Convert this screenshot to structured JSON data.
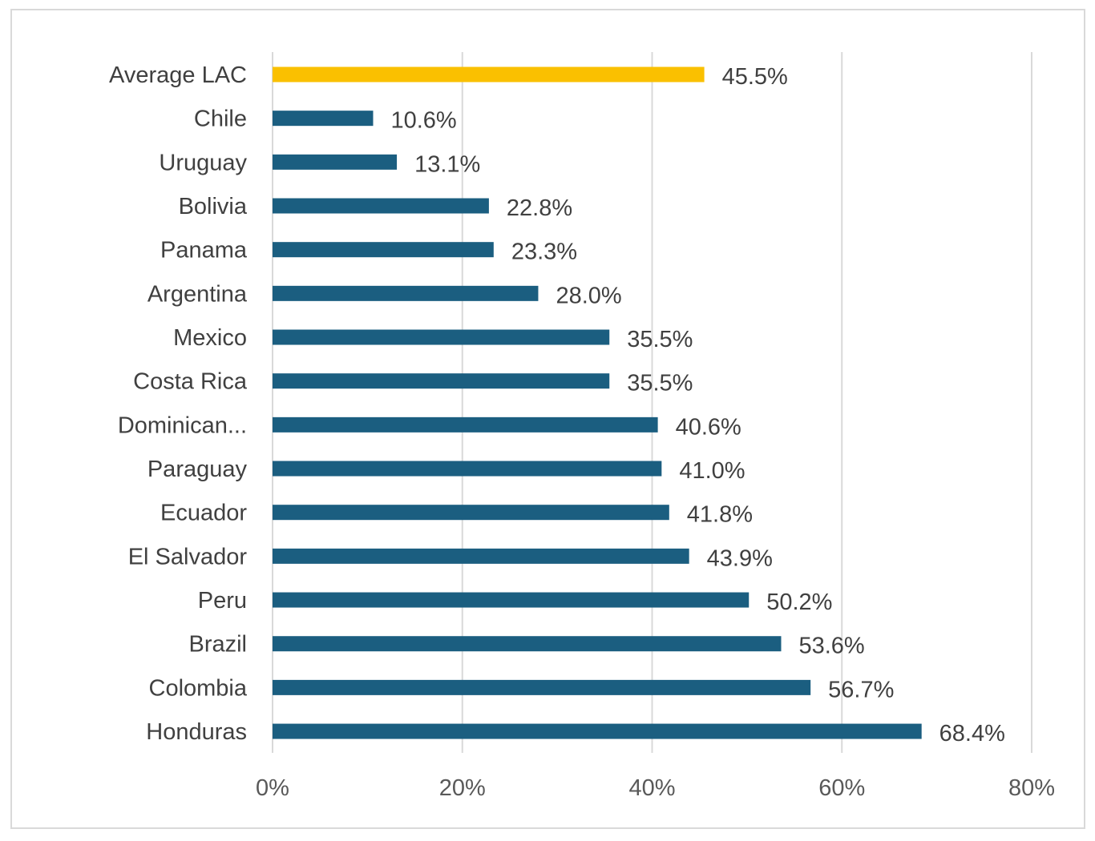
{
  "chart_data": {
    "type": "bar",
    "orientation": "horizontal",
    "categories": [
      "Average LAC",
      "Chile",
      "Uruguay",
      "Bolivia",
      "Panama",
      "Argentina",
      "Mexico",
      "Costa Rica",
      "Dominican...",
      "Paraguay",
      "Ecuador",
      "El Salvador",
      "Peru",
      "Brazil",
      "Colombia",
      "Honduras"
    ],
    "values": [
      45.5,
      10.6,
      13.1,
      22.8,
      23.3,
      28.0,
      35.5,
      35.5,
      40.6,
      41.0,
      41.8,
      43.9,
      50.2,
      53.6,
      56.7,
      68.4
    ],
    "value_labels": [
      "45.5%",
      "10.6%",
      "13.1%",
      "22.8%",
      "23.3%",
      "28.0%",
      "35.5%",
      "35.5%",
      "40.6%",
      "41.0%",
      "41.8%",
      "43.9%",
      "50.2%",
      "53.6%",
      "56.7%",
      "68.4%"
    ],
    "highlight_category": "Average LAC",
    "x_ticks": [
      0,
      20,
      40,
      60,
      80
    ],
    "x_tick_labels": [
      "0%",
      "20%",
      "40%",
      "60%",
      "80%"
    ],
    "xlim": [
      0,
      80
    ],
    "grid": "vertical",
    "legend": "none",
    "title": "",
    "xlabel": "",
    "ylabel": "",
    "colors": {
      "bar": "#1b5e80",
      "highlight": "#fac000",
      "grid": "#d9d9d9",
      "frame": "#d9d9d9",
      "label": "#404040",
      "tick": "#595959"
    }
  }
}
